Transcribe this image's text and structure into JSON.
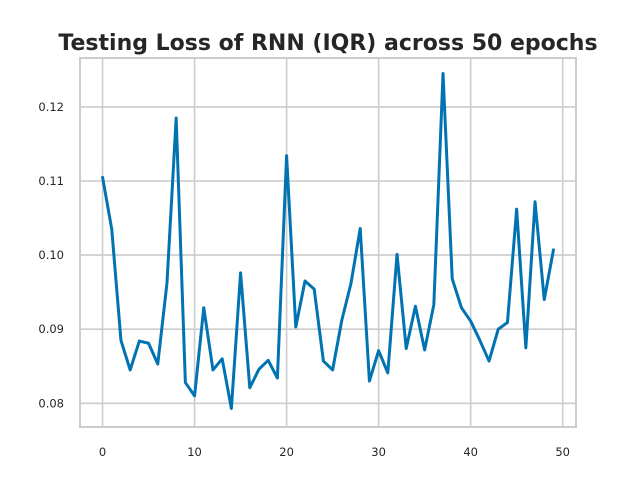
{
  "chart_data": {
    "type": "line",
    "title": "Testing Loss of RNN (IQR) across 50 epochs",
    "xlabel": "",
    "ylabel": "",
    "xlim": [
      -2.45,
      51.45
    ],
    "ylim": [
      0.0768,
      0.1266
    ],
    "xticks": [
      0,
      10,
      20,
      30,
      40,
      50
    ],
    "yticks": [
      0.08,
      0.09,
      0.1,
      0.11,
      0.12
    ],
    "xtick_labels": [
      "0",
      "10",
      "20",
      "30",
      "40",
      "50"
    ],
    "ytick_labels": [
      "0.08",
      "0.09",
      "0.10",
      "0.11",
      "0.12"
    ],
    "grid": true,
    "line_color": "#0173b2",
    "series": [
      {
        "x": [
          0,
          1,
          2,
          3,
          4,
          5,
          6,
          7,
          8,
          9,
          10,
          11,
          12,
          13,
          14,
          15,
          16,
          17,
          18,
          19,
          20,
          21,
          22,
          23,
          24,
          25,
          26,
          27,
          28,
          29,
          30,
          31,
          32,
          33,
          34,
          35,
          36,
          37,
          38,
          39,
          40,
          41,
          42,
          43,
          44,
          45,
          46,
          47,
          48,
          49
        ],
        "values": [
          0.1105,
          0.1035,
          0.0885,
          0.0845,
          0.0884,
          0.0881,
          0.0853,
          0.0962,
          0.1185,
          0.0828,
          0.081,
          0.0929,
          0.0845,
          0.086,
          0.0793,
          0.0976,
          0.0821,
          0.0846,
          0.0858,
          0.0834,
          0.1134,
          0.0903,
          0.0965,
          0.0954,
          0.0857,
          0.0845,
          0.0912,
          0.0962,
          0.1036,
          0.083,
          0.0871,
          0.0841,
          0.1001,
          0.0874,
          0.0931,
          0.0872,
          0.0933,
          0.1245,
          0.0968,
          0.0929,
          0.0911,
          0.0885,
          0.0857,
          0.09,
          0.0909,
          0.1062,
          0.0875,
          0.1072,
          0.094,
          0.1007
        ]
      }
    ]
  }
}
